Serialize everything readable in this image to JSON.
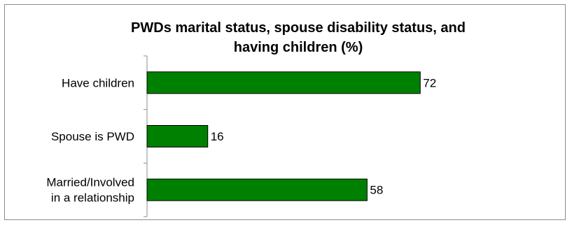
{
  "chart_data": {
    "type": "bar",
    "orientation": "horizontal",
    "title_lines": [
      "PWDs marital status, spouse disability status, and",
      "having children (%)"
    ],
    "categories": [
      "Have children",
      "Spouse is PWD",
      "Married/Involved in a relationship"
    ],
    "category_lines": [
      [
        "Have children"
      ],
      [
        "Spouse is PWD"
      ],
      [
        "Married/Involved",
        "in a relationship"
      ]
    ],
    "values": [
      72,
      16,
      58
    ],
    "data_labels": [
      "72",
      "16",
      "58"
    ],
    "xlim": [
      0,
      100
    ],
    "xlabel": "",
    "ylabel": "",
    "grid": false,
    "legend": "none",
    "bar_color": "#008000",
    "bar_edge_color": "#000000"
  }
}
